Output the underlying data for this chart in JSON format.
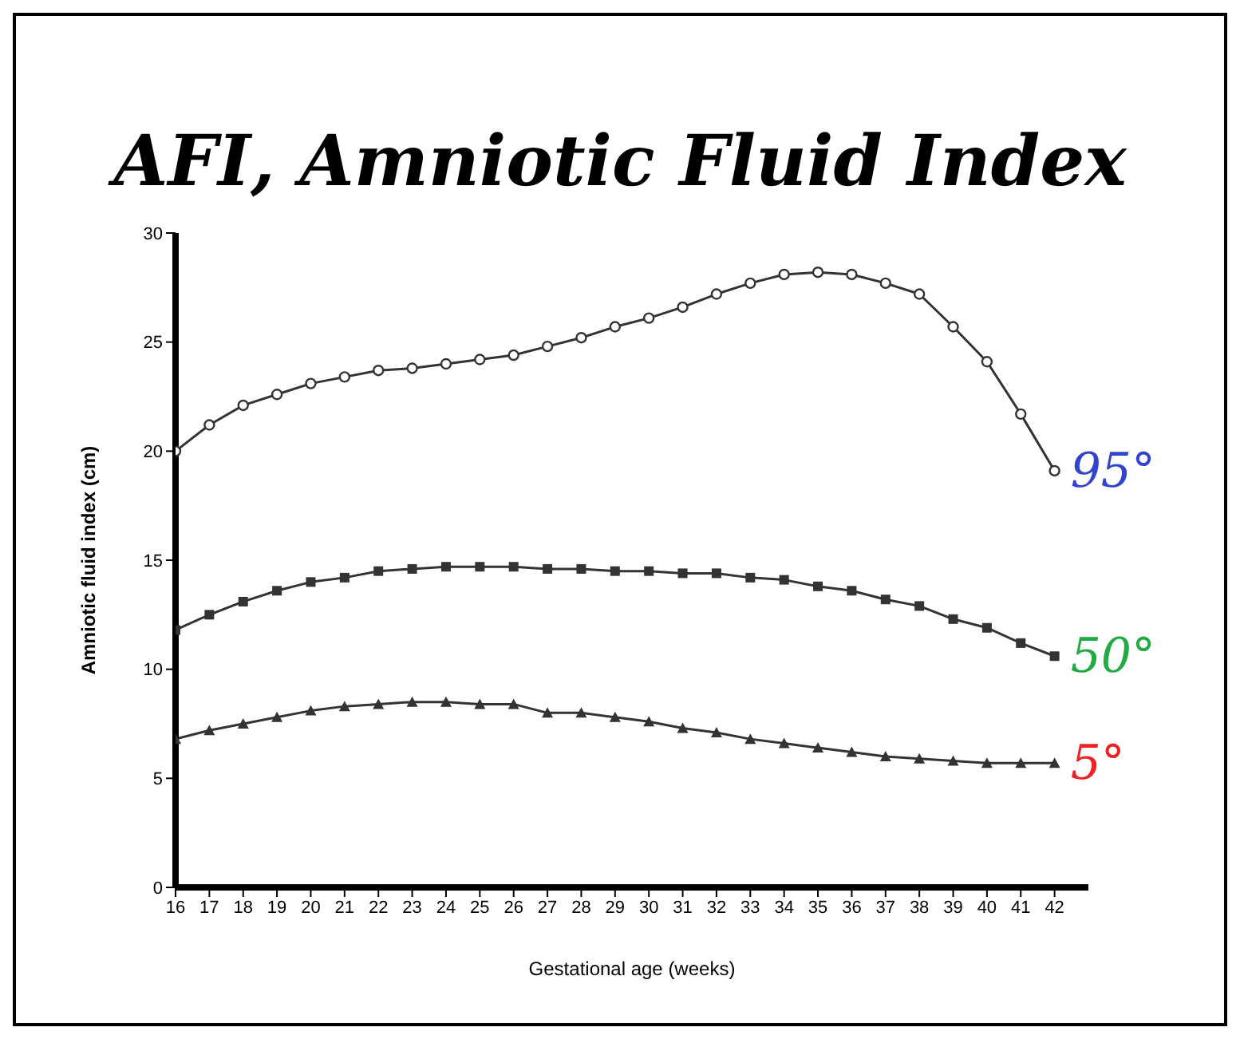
{
  "chart_data": {
    "type": "line",
    "title": "AFI, Amniotic Fluid Index",
    "xlabel": "Gestational age (weeks)",
    "ylabel": "Amniotic fluid index (cm)",
    "x": [
      16,
      17,
      18,
      19,
      20,
      21,
      22,
      23,
      24,
      25,
      26,
      27,
      28,
      29,
      30,
      31,
      32,
      33,
      34,
      35,
      36,
      37,
      38,
      39,
      40,
      41,
      42
    ],
    "series": [
      {
        "name": "95°",
        "color": "#333333",
        "marker": "circle",
        "values": [
          20.0,
          21.2,
          22.1,
          22.6,
          23.1,
          23.4,
          23.7,
          23.8,
          24.0,
          24.2,
          24.4,
          24.8,
          25.2,
          25.7,
          26.1,
          26.6,
          27.2,
          27.7,
          28.1,
          28.2,
          28.1,
          27.7,
          27.2,
          25.7,
          24.1,
          21.7,
          19.1
        ]
      },
      {
        "name": "50°",
        "color": "#333333",
        "marker": "square",
        "values": [
          11.8,
          12.5,
          13.1,
          13.6,
          14.0,
          14.2,
          14.5,
          14.6,
          14.7,
          14.7,
          14.7,
          14.6,
          14.6,
          14.5,
          14.5,
          14.4,
          14.4,
          14.2,
          14.1,
          13.8,
          13.6,
          13.2,
          12.9,
          12.3,
          11.9,
          11.2,
          10.6
        ]
      },
      {
        "name": "5°",
        "color": "#333333",
        "marker": "triangle",
        "values": [
          6.8,
          7.2,
          7.5,
          7.8,
          8.1,
          8.3,
          8.4,
          8.5,
          8.5,
          8.4,
          8.4,
          8.0,
          8.0,
          7.8,
          7.6,
          7.3,
          7.1,
          6.8,
          6.6,
          6.4,
          6.2,
          6.0,
          5.9,
          5.8,
          5.7,
          5.7,
          5.7
        ]
      }
    ],
    "xlim": [
      16,
      43
    ],
    "xticks": [
      16,
      17,
      18,
      19,
      20,
      21,
      22,
      23,
      24,
      25,
      26,
      27,
      28,
      29,
      30,
      31,
      32,
      33,
      34,
      35,
      36,
      37,
      38,
      39,
      40,
      41,
      42
    ],
    "ylim": [
      0,
      30
    ],
    "yticks": [
      0,
      5,
      10,
      15,
      20,
      25,
      30
    ],
    "grid": false,
    "legend": false,
    "line_style": "solid"
  }
}
